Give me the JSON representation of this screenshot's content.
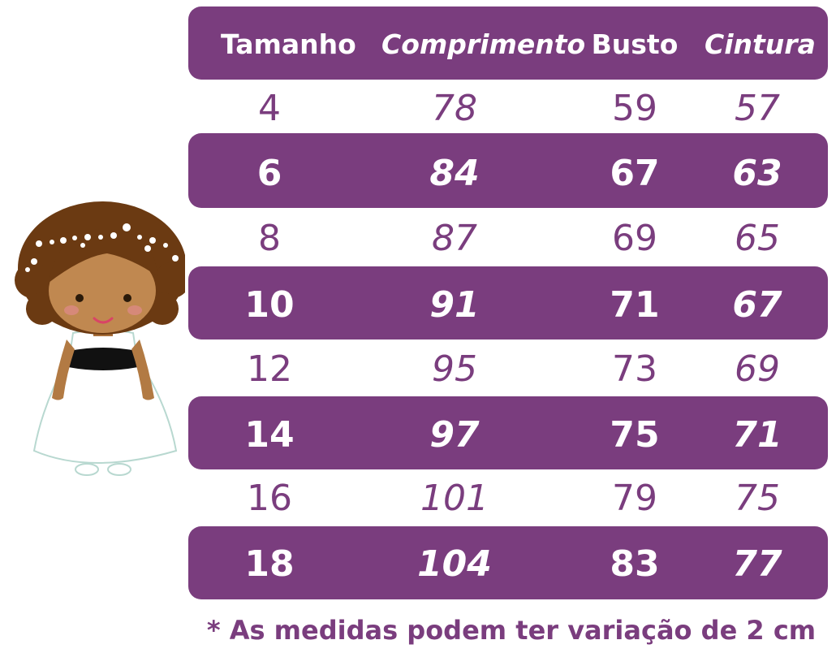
{
  "table": {
    "headers": [
      "Tamanho",
      "Comprimento",
      "Busto",
      "Cintura"
    ],
    "rows": [
      {
        "tamanho": "4",
        "comprimento": "78",
        "busto": "59",
        "cintura": "57"
      },
      {
        "tamanho": "6",
        "comprimento": "84",
        "busto": "67",
        "cintura": "63"
      },
      {
        "tamanho": "8",
        "comprimento": "87",
        "busto": "69",
        "cintura": "65"
      },
      {
        "tamanho": "10",
        "comprimento": "91",
        "busto": "71",
        "cintura": "67"
      },
      {
        "tamanho": "12",
        "comprimento": "95",
        "busto": "73",
        "cintura": "69"
      },
      {
        "tamanho": "14",
        "comprimento": "97",
        "busto": "75",
        "cintura": "71"
      },
      {
        "tamanho": "16",
        "comprimento": "101",
        "busto": "79",
        "cintura": "75"
      },
      {
        "tamanho": "18",
        "comprimento": "104",
        "busto": "83",
        "cintura": "77"
      }
    ]
  },
  "footnote": "* As medidas podem ter variação de 2 cm",
  "colors": {
    "accent": "#7a3d7e",
    "text_on_accent": "#ffffff",
    "background": "#ffffff"
  }
}
